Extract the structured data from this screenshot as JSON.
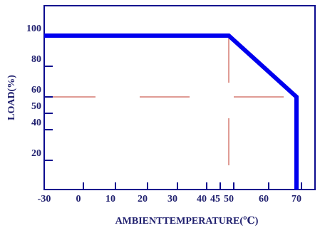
{
  "chart_data": {
    "type": "line",
    "xlabel": "AMBIENTTEMPERATURE(℃)",
    "ylabel": "LOAD(%)",
    "xlim": [
      -30,
      75
    ],
    "ylim": [
      0,
      120
    ],
    "x_ticks": [
      -30,
      0,
      10,
      20,
      30,
      40,
      45,
      50,
      60,
      70
    ],
    "y_ticks": [
      20,
      40,
      50,
      60,
      80,
      100
    ],
    "x_tick_labels": [
      "-30",
      "0",
      "10",
      "20",
      "30",
      "40",
      "45",
      "50",
      "60",
      "70"
    ],
    "y_tick_labels": [
      "20",
      "40",
      "50",
      "60",
      "80",
      "100"
    ],
    "series": [
      {
        "x": [
          -30,
          50,
          70,
          70
        ],
        "y": [
          100,
          100,
          60,
          0
        ]
      }
    ],
    "reference_lines": [
      {
        "orientation": "horizontal",
        "value": 60,
        "style": "dashed"
      },
      {
        "orientation": "vertical",
        "value": 50,
        "style": "dashed"
      }
    ],
    "colors": {
      "series": "#0000ee",
      "axes": "#0b0b8f",
      "reference": "#c0392b",
      "text": "#1f1f6e"
    }
  }
}
